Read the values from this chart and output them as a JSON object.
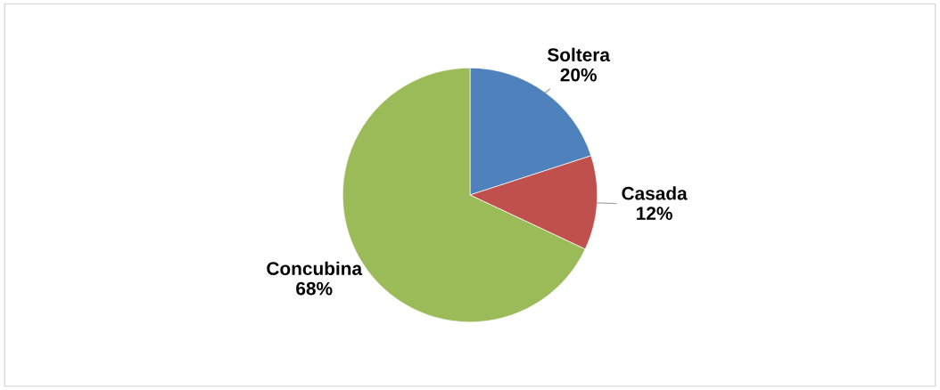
{
  "chart_data": {
    "type": "pie",
    "categories": [
      "Soltera",
      "Casada",
      "Concubina"
    ],
    "values": [
      20,
      12,
      68
    ],
    "value_labels": [
      "20%",
      "12%",
      "68%"
    ],
    "colors": [
      "#4f81bd",
      "#c0504d",
      "#9bbb59"
    ],
    "legend": false
  }
}
